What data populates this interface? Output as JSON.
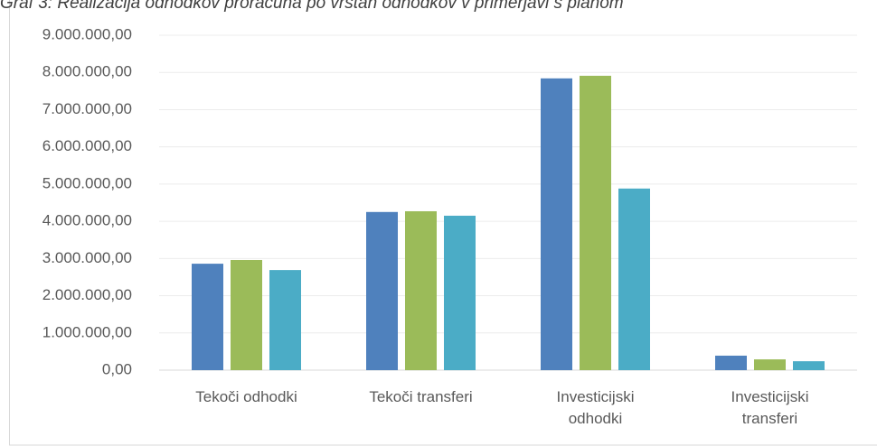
{
  "chart_data": {
    "type": "bar",
    "title": "Graf 3: Realizacija odhodkov proračuna po vrstah odhodkov v primerjavi s planom",
    "categories": [
      "Tekoči odhodki",
      "Tekoči transferi",
      "Investicijski odhodki",
      "Investicijski transferi"
    ],
    "series": [
      {
        "color": "#4f81bd",
        "values": [
          2860000,
          4250000,
          7840000,
          390000
        ]
      },
      {
        "color": "#9bbb59",
        "values": [
          2960000,
          4270000,
          7910000,
          290000
        ]
      },
      {
        "color": "#4bacc6",
        "values": [
          2690000,
          4150000,
          4880000,
          240000
        ]
      }
    ],
    "ylim": [
      0,
      9000000
    ],
    "yticks": [
      {
        "value": 0,
        "label": "0,00"
      },
      {
        "value": 1000000,
        "label": "1.000.000,00"
      },
      {
        "value": 2000000,
        "label": "2.000.000,00"
      },
      {
        "value": 3000000,
        "label": "3.000.000,00"
      },
      {
        "value": 4000000,
        "label": "4.000.000,00"
      },
      {
        "value": 5000000,
        "label": "5.000.000,00"
      },
      {
        "value": 6000000,
        "label": "6.000.000,00"
      },
      {
        "value": 7000000,
        "label": "7.000.000,00"
      },
      {
        "value": 8000000,
        "label": "8.000.000,00"
      },
      {
        "value": 9000000,
        "label": "9.000.000,00"
      }
    ],
    "grid": true
  }
}
